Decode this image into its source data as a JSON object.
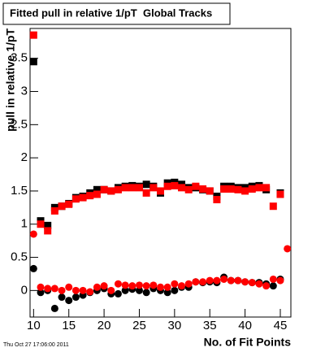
{
  "chart_data": {
    "type": "scatter",
    "title": "Fitted pull in relative 1/pT  Global Tracks",
    "x_label": "No. of Fit Points",
    "y_label": "pull in relative 1/pT",
    "footer": "Thu Oct 27 17:06:00 2011",
    "x": [
      10,
      11,
      12,
      13,
      14,
      15,
      16,
      17,
      18,
      19,
      20,
      21,
      22,
      23,
      24,
      25,
      26,
      27,
      28,
      29,
      30,
      31,
      32,
      33,
      34,
      35,
      36,
      37,
      38,
      39,
      40,
      41,
      42,
      43,
      44,
      45,
      46
    ],
    "series": [
      {
        "marker": "square",
        "color": "#000000",
        "values": [
          3.45,
          1.05,
          0.98,
          1.25,
          1.27,
          1.31,
          1.4,
          1.42,
          1.47,
          1.52,
          1.52,
          1.5,
          1.55,
          1.57,
          1.58,
          1.57,
          1.6,
          1.57,
          1.47,
          1.62,
          1.63,
          1.6,
          1.55,
          1.55,
          1.52,
          1.5,
          1.42,
          1.57,
          1.57,
          1.55,
          1.55,
          1.57,
          1.58,
          1.52,
          null,
          1.47,
          null
        ]
      },
      {
        "marker": "square",
        "color": "#ff0000",
        "values": [
          3.85,
          1.0,
          0.9,
          1.2,
          1.27,
          1.3,
          1.38,
          1.4,
          1.43,
          1.45,
          1.52,
          1.5,
          1.52,
          1.55,
          1.55,
          1.55,
          1.47,
          1.55,
          1.5,
          1.57,
          1.58,
          1.55,
          1.52,
          1.57,
          1.53,
          1.5,
          1.37,
          1.53,
          1.53,
          1.52,
          1.5,
          1.53,
          1.55,
          1.55,
          1.27,
          1.45,
          null
        ]
      },
      {
        "marker": "circle",
        "color": "#000000",
        "values": [
          0.33,
          -0.03,
          0.0,
          -0.27,
          -0.1,
          -0.15,
          -0.1,
          -0.07,
          -0.03,
          0.0,
          0.03,
          -0.05,
          -0.05,
          0.0,
          0.02,
          0.0,
          -0.03,
          0.03,
          0.0,
          -0.03,
          0.0,
          0.05,
          0.05,
          0.13,
          0.12,
          0.13,
          0.12,
          0.2,
          0.15,
          0.15,
          0.13,
          0.12,
          0.12,
          0.1,
          0.07,
          0.17,
          null
        ]
      },
      {
        "marker": "circle",
        "color": "#ff0000",
        "values": [
          0.85,
          0.05,
          0.03,
          0.03,
          0.0,
          0.05,
          0.0,
          0.0,
          -0.02,
          0.05,
          0.07,
          0.0,
          0.1,
          0.08,
          0.07,
          0.08,
          0.07,
          0.08,
          0.05,
          0.05,
          0.1,
          0.07,
          0.1,
          0.13,
          0.13,
          0.15,
          0.15,
          0.17,
          0.15,
          0.15,
          0.13,
          0.12,
          0.1,
          0.07,
          0.17,
          0.15,
          0.63
        ]
      }
    ],
    "xlim": [
      9.5,
      46.5
    ],
    "xticks": [
      10,
      15,
      20,
      25,
      30,
      35,
      40,
      45
    ],
    "ylim": [
      -0.4,
      3.95
    ],
    "yticks": [
      0,
      0.5,
      1,
      1.5,
      2,
      2.5,
      3,
      3.5
    ]
  }
}
